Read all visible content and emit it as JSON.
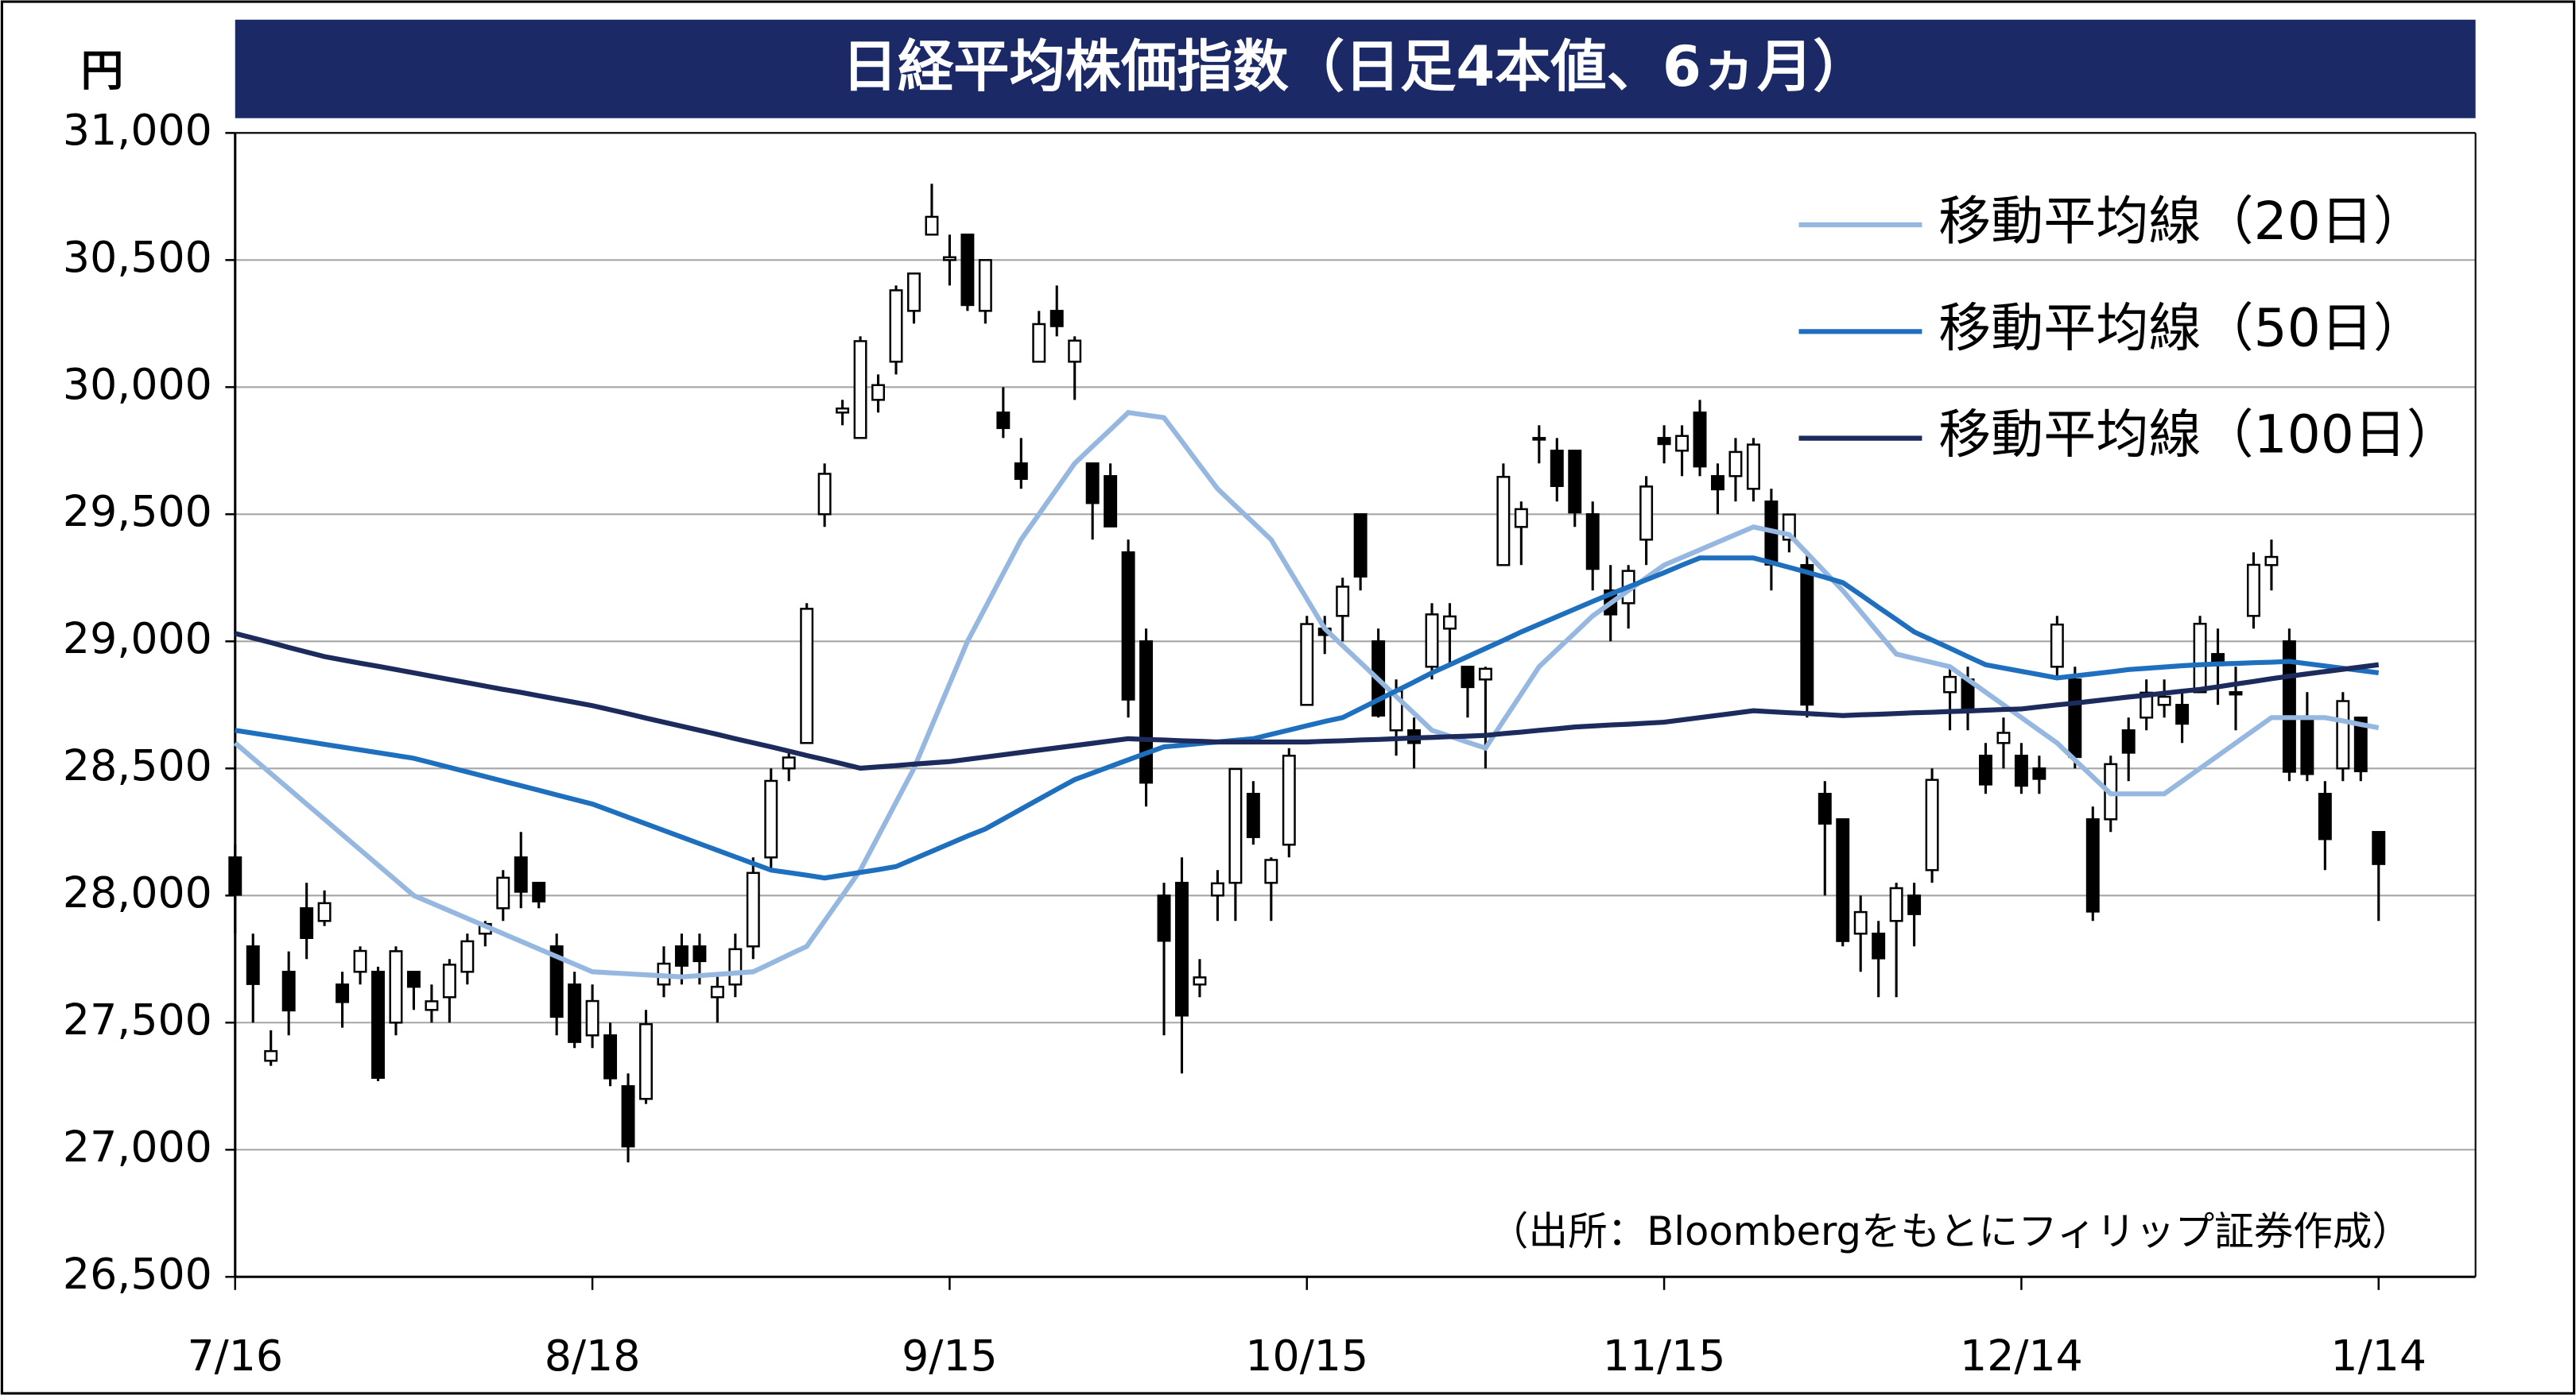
{
  "chart_data": {
    "type": "candlestick",
    "title": "日経平均株価指数（日足4本値、6ヵ月）",
    "y_unit": "円",
    "source": "（出所：Bloombergをもとにフィリップ証券作成）",
    "categories": [
      "7/16",
      null,
      null,
      null,
      null,
      null,
      null,
      null,
      null,
      null,
      null,
      null,
      null,
      null,
      null,
      null,
      null,
      null,
      null,
      null,
      "8/18",
      null,
      null,
      null,
      null,
      null,
      null,
      null,
      null,
      null,
      null,
      null,
      null,
      null,
      null,
      null,
      null,
      null,
      null,
      null,
      "9/15",
      null,
      null,
      null,
      null,
      null,
      null,
      null,
      null,
      null,
      null,
      null,
      null,
      null,
      null,
      null,
      null,
      null,
      null,
      null,
      "10/15",
      null,
      null,
      null,
      null,
      null,
      null,
      null,
      null,
      null,
      null,
      null,
      null,
      null,
      null,
      null,
      null,
      null,
      null,
      null,
      "11/15",
      null,
      null,
      null,
      null,
      null,
      null,
      null,
      null,
      null,
      null,
      null,
      null,
      null,
      null,
      null,
      null,
      null,
      null,
      null,
      "12/14",
      null,
      null,
      null,
      null,
      null,
      null,
      null,
      null,
      null,
      null,
      null,
      null,
      null,
      null,
      null,
      null,
      null,
      null,
      null,
      "1/14"
    ],
    "open": [
      28150,
      27800,
      27350,
      27700,
      27950,
      27900,
      27650,
      27700,
      27700,
      27500,
      27700,
      27550,
      27600,
      27700,
      27850,
      27950,
      28150,
      28050,
      27800,
      27650,
      27450,
      27450,
      27250,
      27200,
      27650,
      27800,
      27800,
      27600,
      27650,
      27800,
      28150,
      28500,
      28600,
      29500,
      29900,
      29800,
      29950,
      30100,
      30300,
      30600,
      30500,
      30600,
      30300,
      29900,
      29700,
      30100,
      30300,
      30100,
      29700,
      29650,
      29350,
      29000,
      28000,
      28050,
      27650,
      28000,
      28050,
      28400,
      28050,
      28200,
      28750,
      29050,
      29100,
      29500,
      29000,
      28650,
      28650,
      28900,
      29050,
      28900,
      28850,
      29300,
      29450,
      29800,
      29750,
      29750,
      29500,
      29200,
      29150,
      29400,
      29800,
      29750,
      29900,
      29650,
      29650,
      29600,
      29550,
      29400,
      29300,
      28400,
      28300,
      27850,
      27850,
      27900,
      28000,
      28100,
      28800,
      28850,
      28550,
      28600,
      28550,
      28500,
      28900,
      28850,
      28300,
      28300,
      28650,
      28700,
      28750,
      28750,
      28800,
      28950,
      28800,
      29100,
      29300,
      29000,
      28700,
      28400,
      28500,
      28700,
      28250
    ],
    "high": [
      28200,
      27850,
      27470,
      27780,
      28050,
      28020,
      27700,
      27800,
      27720,
      27800,
      27700,
      27650,
      27750,
      27850,
      27900,
      28100,
      28250,
      28050,
      27850,
      27700,
      27650,
      27500,
      27300,
      27550,
      27800,
      27850,
      27850,
      27680,
      27850,
      28150,
      28500,
      28560,
      29150,
      29700,
      29950,
      30200,
      30050,
      30400,
      30450,
      30800,
      30600,
      30600,
      30500,
      30000,
      29800,
      30300,
      30400,
      30200,
      29700,
      29700,
      29400,
      29050,
      28050,
      28150,
      27750,
      28100,
      28500,
      28450,
      28150,
      28580,
      29100,
      29100,
      29250,
      29500,
      29050,
      28850,
      28700,
      29150,
      29150,
      28900,
      28900,
      29700,
      29550,
      29850,
      29800,
      29750,
      29550,
      29300,
      29300,
      29650,
      29850,
      29850,
      29950,
      29700,
      29800,
      29800,
      29600,
      29500,
      29350,
      28450,
      28300,
      28000,
      27900,
      28050,
      28050,
      28500,
      28900,
      28900,
      28600,
      28700,
      28600,
      28550,
      29100,
      28900,
      28350,
      28550,
      28700,
      28850,
      28850,
      28800,
      29100,
      29050,
      28900,
      29350,
      29400,
      29050,
      28800,
      28450,
      28800,
      28700,
      28250
    ],
    "low": [
      27850,
      27500,
      27330,
      27450,
      27750,
      27880,
      27480,
      27650,
      27270,
      27450,
      27550,
      27500,
      27500,
      27650,
      27800,
      27900,
      27950,
      27950,
      27450,
      27400,
      27400,
      27250,
      26950,
      27180,
      27600,
      27650,
      27650,
      27500,
      27600,
      27750,
      28100,
      28450,
      28600,
      29450,
      29850,
      29800,
      29900,
      30050,
      30250,
      30600,
      30400,
      30300,
      30250,
      29800,
      29600,
      30100,
      30200,
      29950,
      29400,
      29450,
      28700,
      28350,
      27450,
      27300,
      27600,
      27900,
      27900,
      28200,
      27900,
      28150,
      28750,
      28950,
      29000,
      29200,
      28700,
      28550,
      28500,
      28850,
      28900,
      28700,
      28500,
      29300,
      29300,
      29700,
      29550,
      29450,
      29200,
      29000,
      29050,
      29300,
      29700,
      29650,
      29650,
      29500,
      29550,
      29550,
      29200,
      29350,
      28700,
      28000,
      27800,
      27700,
      27600,
      27600,
      27800,
      28050,
      28650,
      28650,
      28400,
      28500,
      28400,
      28400,
      28850,
      28500,
      27900,
      28250,
      28450,
      28650,
      28700,
      28600,
      28800,
      28750,
      28650,
      29050,
      29200,
      28450,
      28450,
      28100,
      28450,
      28450,
      27900
    ],
    "close": [
      28003,
      27652,
      27388,
      27548,
      27833,
      27970,
      27581,
      27782,
      27283,
      27781,
      27641,
      27584,
      27728,
      27820,
      27888,
      28070,
      28015,
      27977,
      27523,
      27424,
      27585,
      27281,
      27013,
      27494,
      27732,
      27724,
      27742,
      27641,
      27789,
      28089,
      28451,
      28543,
      29128,
      29659,
      29916,
      30181,
      30008,
      30381,
      30447,
      30670,
      30511,
      30323,
      30500,
      29839,
      29639,
      30248,
      30240,
      30183,
      29544,
      29452,
      28771,
      28444,
      27822,
      27528,
      27678,
      28048,
      28498,
      28230,
      28140,
      28550,
      29068,
      29025,
      29215,
      29255,
      28708,
      28804,
      28600,
      29106,
      29098,
      28820,
      28892,
      29647,
      29520,
      29794,
      29611,
      29507,
      29285,
      29106,
      29277,
      29609,
      29776,
      29808,
      29688,
      29598,
      29745,
      29774,
      29302,
      29499,
      28751,
      28283,
      27821,
      27935,
      27753,
      28029,
      27927,
      28455,
      28860,
      28725,
      28437,
      28640,
      28432,
      28459,
      29066,
      28545,
      27937,
      28517,
      28562,
      28798,
      28782,
      28676,
      29069,
      28906,
      28791,
      29301,
      29332,
      28487,
      28478,
      28222,
      28765,
      28489,
      28124
    ],
    "up_color": "#ffffff",
    "down_color": "#000000",
    "series": [
      {
        "name": "移動平均線（20日）",
        "color": "#95b7e0",
        "values": [
          28600,
          28540,
          28480,
          28420,
          28360,
          28300,
          28240,
          28180,
          28120,
          28060,
          28000,
          27970,
          27940,
          27910,
          27880,
          27850,
          27820,
          27790,
          27760,
          27730,
          27700,
          27696,
          27692,
          27688,
          27684,
          27680,
          27685,
          27690,
          27695,
          27700,
          27733,
          27767,
          27800,
          27900,
          28000,
          28100,
          28233,
          28367,
          28500,
          28667,
          28833,
          29000,
          29133,
          29267,
          29400,
          29500,
          29600,
          29700,
          29767,
          29833,
          29900,
          29890,
          29880,
          29787,
          29693,
          29600,
          29533,
          29467,
          29400,
          29283,
          29167,
          29050,
          28983,
          28917,
          28850,
          28783,
          28717,
          28650,
          28627,
          28603,
          28580,
          28687,
          28793,
          28900,
          28967,
          29033,
          29100,
          29150,
          29200,
          29250,
          29300,
          29330,
          29360,
          29390,
          29420,
          29450,
          29435,
          29420,
          29347,
          29273,
          29200,
          29117,
          29033,
          28950,
          28933,
          28917,
          28900,
          28850,
          28800,
          28750,
          28700,
          28650,
          28600,
          28533,
          28467,
          28400,
          28400,
          28400,
          28400,
          28450,
          28500,
          28550,
          28600,
          28650,
          28700,
          28700,
          28700,
          28700,
          28687,
          28673,
          28660
        ]
      },
      {
        "name": "移動平均線（50日）",
        "color": "#1f6fbf",
        "values": [
          28650,
          28639,
          28628,
          28617,
          28606,
          28595,
          28584,
          28573,
          28562,
          28551,
          28540,
          28522,
          28504,
          28486,
          28468,
          28450,
          28432,
          28414,
          28396,
          28378,
          28360,
          28334,
          28308,
          28282,
          28256,
          28230,
          28204,
          28178,
          28152,
          28126,
          28100,
          28090,
          28080,
          28069,
          28080,
          28091,
          28102,
          28114,
          28144,
          28174,
          28204,
          28234,
          28262,
          28301,
          28340,
          28379,
          28418,
          28456,
          28482,
          28508,
          28534,
          28560,
          28585,
          28591,
          28598,
          28604,
          28611,
          28617,
          28634,
          28651,
          28668,
          28685,
          28700,
          28735,
          28770,
          28805,
          28840,
          28876,
          28908,
          28940,
          28972,
          29004,
          29037,
          29067,
          29097,
          29127,
          29157,
          29186,
          29214,
          29242,
          29270,
          29300,
          29328,
          29328,
          29328,
          29328,
          29310,
          29291,
          29272,
          29252,
          29231,
          29183,
          29134,
          29086,
          29037,
          29005,
          28973,
          28940,
          28908,
          28895,
          28882,
          28869,
          28856,
          28864,
          28872,
          28880,
          28889,
          28894,
          28899,
          28904,
          28908,
          28911,
          28913,
          28916,
          28918,
          28921,
          28912,
          28903,
          28894,
          28885,
          28876
        ]
      },
      {
        "name": "移動平均線（100日）",
        "color": "#1c2a5c",
        "values": [
          29031,
          29013,
          28995,
          28976,
          28958,
          28940,
          28927,
          28914,
          28902,
          28889,
          28876,
          28863,
          28850,
          28837,
          28824,
          28811,
          28799,
          28786,
          28773,
          28760,
          28747,
          28731,
          28715,
          28698,
          28682,
          28666,
          28650,
          28634,
          28617,
          28601,
          28585,
          28568,
          28551,
          28535,
          28518,
          28501,
          28506,
          28511,
          28517,
          28522,
          28527,
          28536,
          28545,
          28554,
          28563,
          28572,
          28581,
          28590,
          28599,
          28608,
          28617,
          28614,
          28612,
          28609,
          28607,
          28604,
          28604,
          28604,
          28604,
          28604,
          28604,
          28607,
          28609,
          28612,
          28614,
          28617,
          28620,
          28622,
          28625,
          28627,
          28630,
          28637,
          28643,
          28650,
          28656,
          28663,
          28667,
          28671,
          28674,
          28678,
          28682,
          28691,
          28700,
          28709,
          28718,
          28727,
          28723,
          28719,
          28716,
          28712,
          28708,
          28711,
          28713,
          28716,
          28719,
          28721,
          28724,
          28726,
          28729,
          28732,
          28734,
          28742,
          28750,
          28757,
          28765,
          28773,
          28781,
          28788,
          28796,
          28804,
          28811,
          28821,
          28832,
          28842,
          28853,
          28863,
          28872,
          28881,
          28890,
          28899,
          28908
        ]
      }
    ],
    "ylim": [
      26500,
      31000
    ],
    "yticks": [
      {
        "value": 26500,
        "label": "26,500"
      },
      {
        "value": 27000,
        "label": "27,000"
      },
      {
        "value": 27500,
        "label": "27,500"
      },
      {
        "value": 28000,
        "label": "28,000"
      },
      {
        "value": 28500,
        "label": "28,500"
      },
      {
        "value": 29000,
        "label": "29,000"
      },
      {
        "value": 29500,
        "label": "29,500"
      },
      {
        "value": 30000,
        "label": "30,000"
      },
      {
        "value": 30500,
        "label": "30,500"
      },
      {
        "value": 31000,
        "label": "31,000"
      }
    ],
    "grid": true,
    "legend": "upper right"
  }
}
